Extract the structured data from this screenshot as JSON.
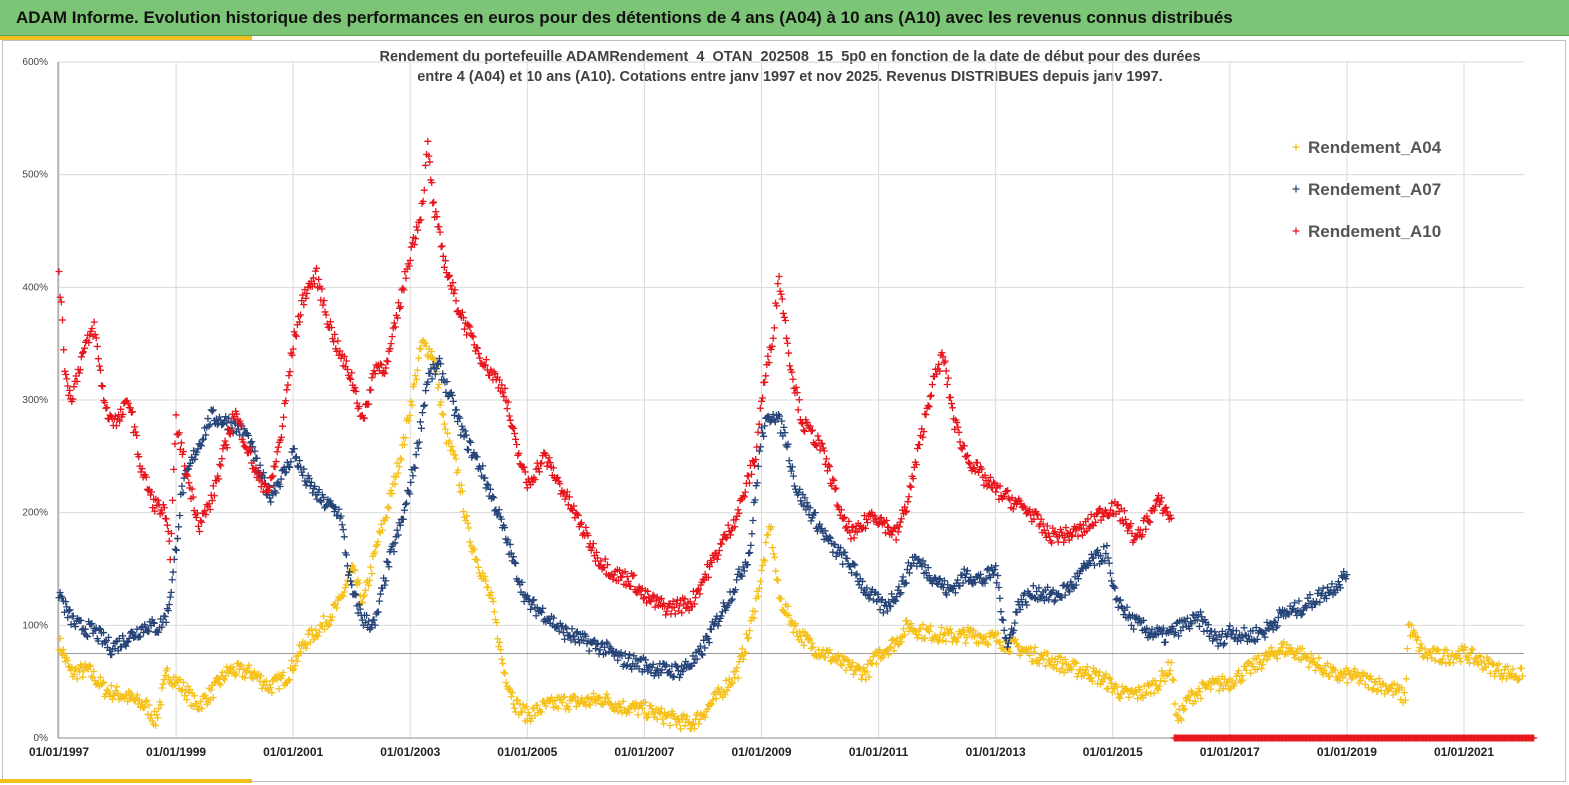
{
  "header": {
    "title": "ADAM Informe. Evolution historique des performances en euros pour des détentions de 4 ans (A04) à 10 ans (A10) avec les revenus connus distribués"
  },
  "chart_data": {
    "type": "scatter",
    "title_line1": "Rendement du portefeuille ADAMRendement_4_OTAN_202508_15_5p0  en fonction de la date de début pour des durées",
    "title_line2": "entre 4 (A04) et 10 ans (A10). Cotations entre janv 1997 et nov 2025. Revenus DISTRIBUES depuis janv 1997.",
    "x_range": [
      1997.0,
      2022.2
    ],
    "ylim": [
      0,
      600
    ],
    "y_ticks": [
      0,
      100,
      200,
      300,
      400,
      500,
      600
    ],
    "y_tick_labels": [
      "0%",
      "100%",
      "200%",
      "300%",
      "400%",
      "500%",
      "600%"
    ],
    "x_ticks": [
      1997,
      1999,
      2001,
      2003,
      2005,
      2007,
      2009,
      2011,
      2013,
      2015,
      2017,
      2019,
      2021
    ],
    "x_tick_labels": [
      "01/01/1997",
      "01/01/1999",
      "01/01/2001",
      "01/01/2003",
      "01/01/2005",
      "01/01/2007",
      "01/01/2009",
      "01/01/2011",
      "01/01/2013",
      "01/01/2015",
      "01/01/2017",
      "01/01/2019",
      "01/01/2021"
    ],
    "reference_line": 75,
    "grid": true,
    "legend_position": "top-right",
    "series": [
      {
        "name": "Rendement_A04",
        "color": "#f5c11a",
        "x_end": 2022.0,
        "points": [
          [
            1997.0,
            85
          ],
          [
            1997.2,
            58
          ],
          [
            1997.5,
            60
          ],
          [
            1997.8,
            42
          ],
          [
            1998.1,
            38
          ],
          [
            1998.5,
            28
          ],
          [
            1998.65,
            15
          ],
          [
            1998.85,
            58
          ],
          [
            1999.2,
            40
          ],
          [
            1999.35,
            28
          ],
          [
            1999.6,
            40
          ],
          [
            1999.9,
            60
          ],
          [
            2000.3,
            58
          ],
          [
            2000.6,
            45
          ],
          [
            2000.9,
            55
          ],
          [
            2001.2,
            85
          ],
          [
            2001.5,
            100
          ],
          [
            2001.8,
            120
          ],
          [
            2002.0,
            150
          ],
          [
            2002.2,
            120
          ],
          [
            2002.45,
            175
          ],
          [
            2002.6,
            200
          ],
          [
            2002.9,
            265
          ],
          [
            2003.2,
            350
          ],
          [
            2003.4,
            340
          ],
          [
            2003.6,
            270
          ],
          [
            2003.8,
            240
          ],
          [
            2004.0,
            180
          ],
          [
            2004.2,
            150
          ],
          [
            2004.4,
            120
          ],
          [
            2004.6,
            60
          ],
          [
            2004.8,
            30
          ],
          [
            2005.0,
            20
          ],
          [
            2005.3,
            28
          ],
          [
            2005.6,
            32
          ],
          [
            2006.0,
            32
          ],
          [
            2006.3,
            35
          ],
          [
            2006.6,
            28
          ],
          [
            2007.0,
            25
          ],
          [
            2007.4,
            18
          ],
          [
            2007.8,
            12
          ],
          [
            2008.0,
            22
          ],
          [
            2008.3,
            40
          ],
          [
            2008.6,
            60
          ],
          [
            2008.8,
            95
          ],
          [
            2009.0,
            145
          ],
          [
            2009.15,
            190
          ],
          [
            2009.3,
            125
          ],
          [
            2009.6,
            95
          ],
          [
            2009.9,
            80
          ],
          [
            2010.2,
            72
          ],
          [
            2010.5,
            62
          ],
          [
            2010.8,
            58
          ],
          [
            2011.0,
            75
          ],
          [
            2011.3,
            85
          ],
          [
            2011.5,
            100
          ],
          [
            2011.7,
            95
          ],
          [
            2012.0,
            92
          ],
          [
            2012.3,
            90
          ],
          [
            2012.6,
            92
          ],
          [
            2013.0,
            88
          ],
          [
            2013.3,
            82
          ],
          [
            2013.6,
            75
          ],
          [
            2014.0,
            68
          ],
          [
            2014.3,
            62
          ],
          [
            2014.6,
            58
          ],
          [
            2014.9,
            50
          ],
          [
            2015.2,
            38
          ],
          [
            2015.5,
            40
          ],
          [
            2015.8,
            50
          ],
          [
            2016.0,
            65
          ],
          [
            2016.1,
            15
          ],
          [
            2016.3,
            35
          ],
          [
            2016.6,
            45
          ],
          [
            2017.0,
            50
          ],
          [
            2017.3,
            60
          ],
          [
            2017.6,
            70
          ],
          [
            2017.9,
            80
          ],
          [
            2018.2,
            75
          ],
          [
            2018.5,
            65
          ],
          [
            2018.8,
            55
          ],
          [
            2019.1,
            55
          ],
          [
            2019.4,
            50
          ],
          [
            2019.7,
            45
          ],
          [
            2019.9,
            40
          ],
          [
            2020.0,
            35
          ],
          [
            2020.05,
            100
          ],
          [
            2020.3,
            75
          ],
          [
            2020.6,
            72
          ],
          [
            2021.0,
            75
          ],
          [
            2021.3,
            68
          ],
          [
            2021.6,
            60
          ],
          [
            2022.0,
            55
          ]
        ]
      },
      {
        "name": "Rendement_A07",
        "color": "#264478",
        "x_end": 2019.0,
        "points": [
          [
            1997.0,
            130
          ],
          [
            1997.15,
            110
          ],
          [
            1997.3,
            100
          ],
          [
            1997.6,
            95
          ],
          [
            1997.9,
            80
          ],
          [
            1998.2,
            90
          ],
          [
            1998.5,
            100
          ],
          [
            1998.7,
            98
          ],
          [
            1998.85,
            110
          ],
          [
            1998.95,
            145
          ],
          [
            1999.1,
            220
          ],
          [
            1999.3,
            250
          ],
          [
            1999.6,
            285
          ],
          [
            1999.9,
            280
          ],
          [
            2000.2,
            270
          ],
          [
            2000.4,
            240
          ],
          [
            2000.6,
            215
          ],
          [
            2000.9,
            240
          ],
          [
            2001.0,
            255
          ],
          [
            2001.2,
            230
          ],
          [
            2001.5,
            210
          ],
          [
            2001.8,
            200
          ],
          [
            2002.0,
            130
          ],
          [
            2002.2,
            105
          ],
          [
            2002.4,
            100
          ],
          [
            2002.6,
            150
          ],
          [
            2002.9,
            200
          ],
          [
            2003.1,
            250
          ],
          [
            2003.3,
            320
          ],
          [
            2003.5,
            330
          ],
          [
            2003.7,
            300
          ],
          [
            2003.9,
            270
          ],
          [
            2004.2,
            240
          ],
          [
            2004.5,
            200
          ],
          [
            2004.8,
            150
          ],
          [
            2005.0,
            120
          ],
          [
            2005.3,
            110
          ],
          [
            2005.6,
            95
          ],
          [
            2006.0,
            85
          ],
          [
            2006.3,
            80
          ],
          [
            2006.6,
            70
          ],
          [
            2007.0,
            65
          ],
          [
            2007.3,
            60
          ],
          [
            2007.6,
            60
          ],
          [
            2007.9,
            70
          ],
          [
            2008.2,
            100
          ],
          [
            2008.5,
            130
          ],
          [
            2008.8,
            165
          ],
          [
            2009.0,
            270
          ],
          [
            2009.2,
            290
          ],
          [
            2009.4,
            270
          ],
          [
            2009.6,
            220
          ],
          [
            2009.9,
            195
          ],
          [
            2010.2,
            170
          ],
          [
            2010.5,
            155
          ],
          [
            2010.8,
            130
          ],
          [
            2011.1,
            115
          ],
          [
            2011.4,
            135
          ],
          [
            2011.6,
            160
          ],
          [
            2011.9,
            145
          ],
          [
            2012.2,
            130
          ],
          [
            2012.5,
            145
          ],
          [
            2012.8,
            140
          ],
          [
            2013.0,
            150
          ],
          [
            2013.2,
            80
          ],
          [
            2013.4,
            120
          ],
          [
            2013.7,
            130
          ],
          [
            2014.0,
            125
          ],
          [
            2014.3,
            135
          ],
          [
            2014.6,
            155
          ],
          [
            2014.9,
            165
          ],
          [
            2015.0,
            130
          ],
          [
            2015.3,
            105
          ],
          [
            2015.6,
            95
          ],
          [
            2015.9,
            90
          ],
          [
            2016.2,
            100
          ],
          [
            2016.5,
            105
          ],
          [
            2016.8,
            85
          ],
          [
            2017.0,
            95
          ],
          [
            2017.3,
            90
          ],
          [
            2017.6,
            95
          ],
          [
            2017.9,
            110
          ],
          [
            2018.2,
            115
          ],
          [
            2018.5,
            125
          ],
          [
            2018.8,
            135
          ],
          [
            2019.0,
            145
          ]
        ]
      },
      {
        "name": "Rendement_A10",
        "color": "#e8141c",
        "x_end": 2016.0,
        "points": [
          [
            1997.0,
            415
          ],
          [
            1997.1,
            330
          ],
          [
            1997.2,
            300
          ],
          [
            1997.4,
            340
          ],
          [
            1997.6,
            365
          ],
          [
            1997.8,
            290
          ],
          [
            1998.0,
            280
          ],
          [
            1998.2,
            300
          ],
          [
            1998.4,
            240
          ],
          [
            1998.6,
            210
          ],
          [
            1998.8,
            200
          ],
          [
            1998.9,
            165
          ],
          [
            1999.0,
            280
          ],
          [
            1999.2,
            230
          ],
          [
            1999.4,
            190
          ],
          [
            1999.6,
            210
          ],
          [
            1999.8,
            250
          ],
          [
            2000.0,
            290
          ],
          [
            2000.2,
            260
          ],
          [
            2000.4,
            230
          ],
          [
            2000.6,
            220
          ],
          [
            2000.8,
            270
          ],
          [
            2001.0,
            350
          ],
          [
            2001.2,
            395
          ],
          [
            2001.4,
            410
          ],
          [
            2001.6,
            370
          ],
          [
            2001.8,
            340
          ],
          [
            2002.0,
            320
          ],
          [
            2002.2,
            280
          ],
          [
            2002.4,
            330
          ],
          [
            2002.6,
            330
          ],
          [
            2002.8,
            380
          ],
          [
            2003.0,
            430
          ],
          [
            2003.2,
            470
          ],
          [
            2003.3,
            525
          ],
          [
            2003.4,
            470
          ],
          [
            2003.6,
            420
          ],
          [
            2003.8,
            385
          ],
          [
            2004.0,
            360
          ],
          [
            2004.3,
            330
          ],
          [
            2004.6,
            310
          ],
          [
            2004.8,
            260
          ],
          [
            2005.0,
            225
          ],
          [
            2005.3,
            250
          ],
          [
            2005.5,
            230
          ],
          [
            2005.7,
            210
          ],
          [
            2006.0,
            180
          ],
          [
            2006.2,
            160
          ],
          [
            2006.5,
            145
          ],
          [
            2006.8,
            140
          ],
          [
            2007.0,
            125
          ],
          [
            2007.4,
            115
          ],
          [
            2007.8,
            120
          ],
          [
            2008.0,
            140
          ],
          [
            2008.3,
            170
          ],
          [
            2008.6,
            200
          ],
          [
            2008.9,
            250
          ],
          [
            2009.0,
            300
          ],
          [
            2009.2,
            360
          ],
          [
            2009.3,
            410
          ],
          [
            2009.5,
            330
          ],
          [
            2009.7,
            280
          ],
          [
            2010.0,
            260
          ],
          [
            2010.2,
            230
          ],
          [
            2010.4,
            190
          ],
          [
            2010.6,
            180
          ],
          [
            2010.9,
            200
          ],
          [
            2011.1,
            190
          ],
          [
            2011.3,
            180
          ],
          [
            2011.5,
            210
          ],
          [
            2011.7,
            260
          ],
          [
            2011.9,
            310
          ],
          [
            2012.1,
            340
          ],
          [
            2012.3,
            280
          ],
          [
            2012.5,
            250
          ],
          [
            2012.8,
            230
          ],
          [
            2013.0,
            220
          ],
          [
            2013.3,
            210
          ],
          [
            2013.6,
            200
          ],
          [
            2013.9,
            180
          ],
          [
            2014.2,
            180
          ],
          [
            2014.5,
            185
          ],
          [
            2014.8,
            200
          ],
          [
            2015.0,
            205
          ],
          [
            2015.2,
            195
          ],
          [
            2015.4,
            175
          ],
          [
            2015.6,
            195
          ],
          [
            2015.8,
            210
          ],
          [
            2016.0,
            195
          ]
        ]
      }
    ],
    "zero_series": {
      "name": "Rendement_A10",
      "color": "#e8141c",
      "x": [
        2016.05,
        2022.2
      ],
      "value": 0
    },
    "legend": [
      "Rendement_A04",
      "Rendement_A07",
      "Rendement_A10"
    ]
  }
}
